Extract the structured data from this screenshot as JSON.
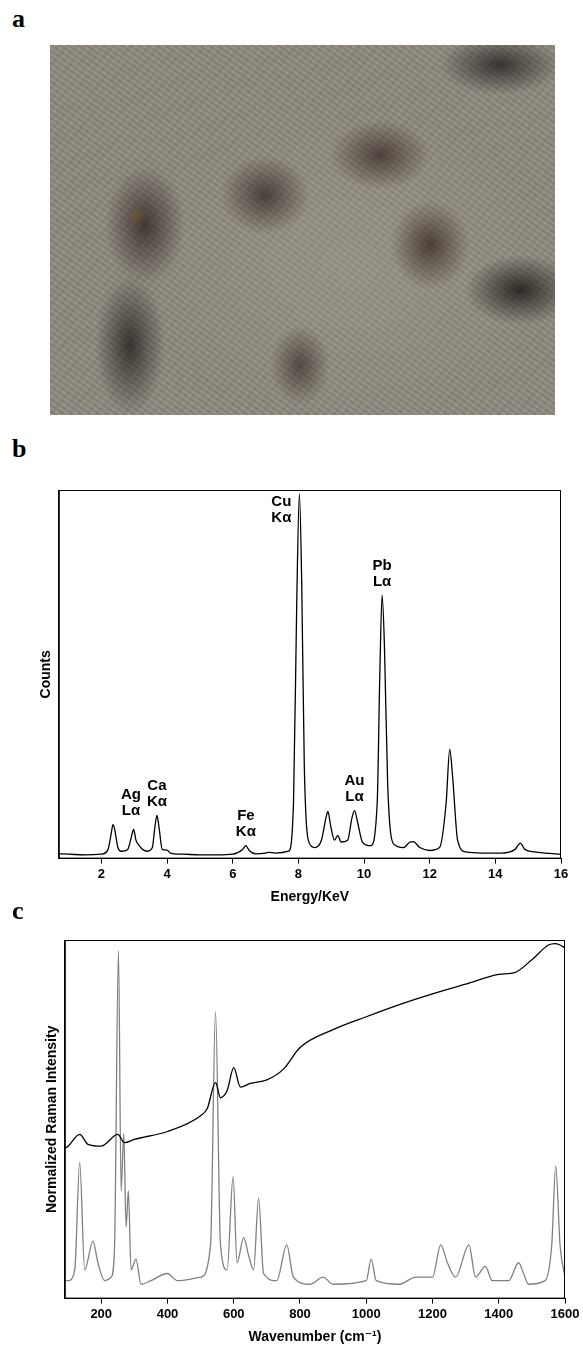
{
  "panel_a": {
    "label": "a"
  },
  "chart_data": [
    {
      "label": "b",
      "type": "line",
      "x_label": "Energy/KeV",
      "y_label": "Counts",
      "xlim": [
        0.7,
        16
      ],
      "xticks": [
        2,
        4,
        6,
        8,
        10,
        12,
        14,
        16
      ],
      "ylim": [
        0,
        100
      ],
      "tick_labels": "x",
      "grid": false,
      "color": "#000000",
      "x": [
        0.7,
        1.0,
        1.5,
        2.0,
        2.2,
        2.3,
        2.35,
        2.4,
        2.5,
        2.6,
        2.8,
        2.9,
        2.98,
        3.05,
        3.15,
        3.25,
        3.4,
        3.55,
        3.62,
        3.69,
        3.76,
        3.85,
        4.0,
        4.1,
        4.5,
        5.0,
        5.5,
        6.0,
        6.3,
        6.4,
        6.5,
        6.7,
        7.0,
        7.1,
        7.3,
        7.7,
        7.85,
        7.95,
        8.03,
        8.1,
        8.18,
        8.3,
        8.5,
        8.7,
        8.85,
        8.9,
        8.98,
        9.1,
        9.2,
        9.3,
        9.5,
        9.63,
        9.71,
        9.8,
        9.95,
        10.2,
        10.4,
        10.48,
        10.55,
        10.62,
        10.72,
        10.9,
        11.2,
        11.4,
        11.5,
        11.7,
        12.0,
        12.3,
        12.5,
        12.61,
        12.7,
        12.85,
        13.1,
        13.6,
        14.2,
        14.6,
        14.76,
        14.9,
        15.2,
        15.5,
        16.0
      ],
      "values": [
        1.3,
        1.2,
        1,
        1.2,
        2.5,
        7,
        9.2,
        8,
        3,
        2,
        2.5,
        5.5,
        7.9,
        5,
        3.5,
        2.5,
        2,
        3,
        8,
        11.7,
        8,
        2.5,
        2.3,
        1.5,
        1.2,
        1,
        1,
        1.2,
        2.5,
        3.5,
        2.2,
        1.3,
        1.5,
        1.7,
        1.5,
        2,
        15,
        70,
        99,
        75,
        25,
        5,
        3,
        5,
        11.5,
        12.8,
        9,
        5,
        6.3,
        4.5,
        5,
        11,
        13,
        10,
        4.5,
        3.5,
        15,
        50,
        71.5,
        58,
        20,
        4,
        3,
        4.5,
        4.6,
        3,
        2.2,
        3,
        15,
        29.6,
        22,
        5,
        1.8,
        1.5,
        1.5,
        2.5,
        4.2,
        2.5,
        1.8,
        1.5,
        1.2
      ],
      "annotations": [
        {
          "text": [
            "Ag",
            "Lα"
          ],
          "x": 2.98
        },
        {
          "text": [
            "Ca",
            "Kα"
          ],
          "x": 3.69
        },
        {
          "text": [
            "Fe",
            "Kα"
          ],
          "x": 6.4
        },
        {
          "text": [
            "Cu",
            "Kα"
          ],
          "x": 8.03
        },
        {
          "text": [
            "Au",
            "Lα"
          ],
          "x": 9.71
        },
        {
          "text": [
            "Pb",
            "Lα"
          ],
          "x": 10.55
        }
      ]
    },
    {
      "label": "c",
      "type": "line",
      "x_label": "Wavenumber (cm⁻¹)",
      "y_label": "Normalized Raman Intensity",
      "xlim": [
        90,
        1600
      ],
      "xticks": [
        200,
        400,
        600,
        800,
        1000,
        1200,
        1400,
        1600
      ],
      "ylim": [
        0,
        100
      ],
      "tick_labels": "x",
      "grid": false,
      "series": [
        {
          "color": "#000000",
          "x": [
            92,
            100,
            135,
            160,
            200,
            250,
            270,
            300,
            400,
            500,
            520,
            545,
            560,
            580,
            600,
            620,
            650,
            700,
            750,
            800,
            900,
            1000,
            1100,
            1200,
            1300,
            1400,
            1450,
            1500,
            1550,
            1570,
            1585,
            1600
          ],
          "values": [
            42,
            42.5,
            45.8,
            43,
            42.5,
            45.8,
            43.5,
            44.4,
            46.6,
            51,
            53,
            60.3,
            56,
            58,
            64.4,
            59,
            60,
            61,
            64,
            70,
            75,
            78.6,
            82,
            85,
            87.7,
            90.4,
            91,
            94.5,
            98.6,
            99,
            98.6,
            97.8
          ]
        },
        {
          "color": "#808080",
          "x": [
            92,
            100,
            120,
            135,
            150,
            175,
            190,
            210,
            230,
            240,
            252,
            260,
            268,
            275,
            282,
            290,
            305,
            320,
            350,
            400,
            430,
            500,
            530,
            545,
            560,
            580,
            598,
            610,
            630,
            645,
            660,
            675,
            690,
            730,
            760,
            780,
            830,
            870,
            900,
            1000,
            1015,
            1030,
            1100,
            1150,
            1200,
            1225,
            1245,
            1270,
            1310,
            1330,
            1360,
            1380,
            1430,
            1460,
            1475,
            1490,
            1540,
            1560,
            1572,
            1585,
            1600
          ],
          "values": [
            5,
            5,
            8,
            38,
            8,
            16,
            10,
            5,
            6,
            14,
            97,
            30,
            46,
            20,
            30,
            8,
            11,
            4,
            5,
            7,
            5,
            6,
            15,
            80,
            15,
            8,
            34,
            10,
            17,
            12,
            8,
            28,
            7,
            5,
            15,
            6,
            4,
            6,
            4,
            5,
            11,
            5,
            4,
            6,
            6,
            15,
            10,
            6,
            15,
            6,
            9,
            5,
            5,
            10,
            7,
            4,
            5,
            15,
            37,
            15,
            6
          ]
        }
      ]
    }
  ]
}
